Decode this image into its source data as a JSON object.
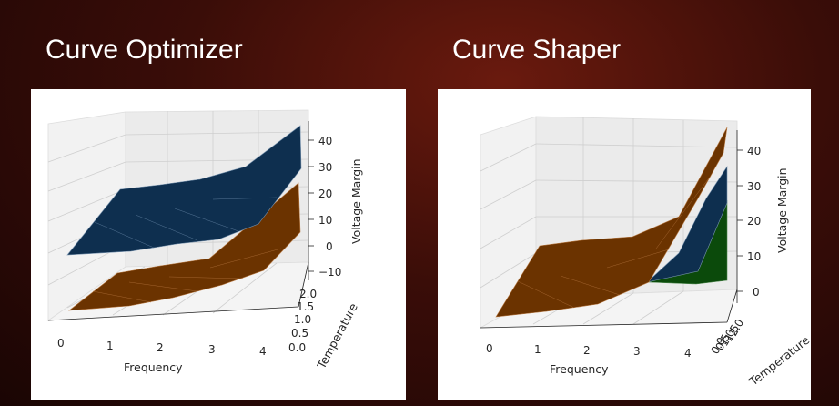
{
  "slide": {
    "left_title": "Curve Optimizer",
    "right_title": "Curve Shaper"
  },
  "chart_data": [
    {
      "type": "surface3d",
      "title": "Curve Optimizer",
      "xlabel": "Frequency",
      "ylabel": "Temperature",
      "zlabel": "Voltage Margin",
      "x_ticks": [
        "0",
        "1",
        "2",
        "3",
        "4"
      ],
      "y_ticks": [
        "0.0",
        "0.5",
        "1.0",
        "1.5",
        "2.0"
      ],
      "z_ticks": [
        "−10",
        "0",
        "10",
        "20",
        "30",
        "40"
      ],
      "x": [
        0,
        1,
        2,
        3,
        4
      ],
      "surfaces": [
        {
          "color": "#0e2f4f",
          "values": [
            13,
            19,
            20,
            26,
            42
          ]
        },
        {
          "color": "#6b3300",
          "values": [
            -8,
            -5,
            -2,
            6,
            26
          ]
        }
      ]
    },
    {
      "type": "surface3d",
      "title": "Curve Shaper",
      "xlabel": "Frequency",
      "ylabel": "Temperature",
      "zlabel": "Voltage Margin",
      "x_ticks": [
        "0",
        "1",
        "2",
        "3",
        "4"
      ],
      "y_ticks": [
        "0.0",
        "0.5",
        "1.0",
        "1.5",
        "2.0"
      ],
      "z_ticks": [
        "0",
        "10",
        "20",
        "30",
        "40"
      ],
      "x": [
        0,
        1,
        2,
        3,
        4
      ],
      "surfaces": [
        {
          "color": "#6b3300",
          "values": [
            0,
            10,
            10,
            18,
            45
          ]
        },
        {
          "color": "#0e2f4f",
          "values": [
            0,
            0,
            0,
            0,
            35
          ]
        },
        {
          "color": "#0b4a0b",
          "values": [
            0,
            0,
            0,
            0,
            25
          ]
        }
      ]
    }
  ]
}
